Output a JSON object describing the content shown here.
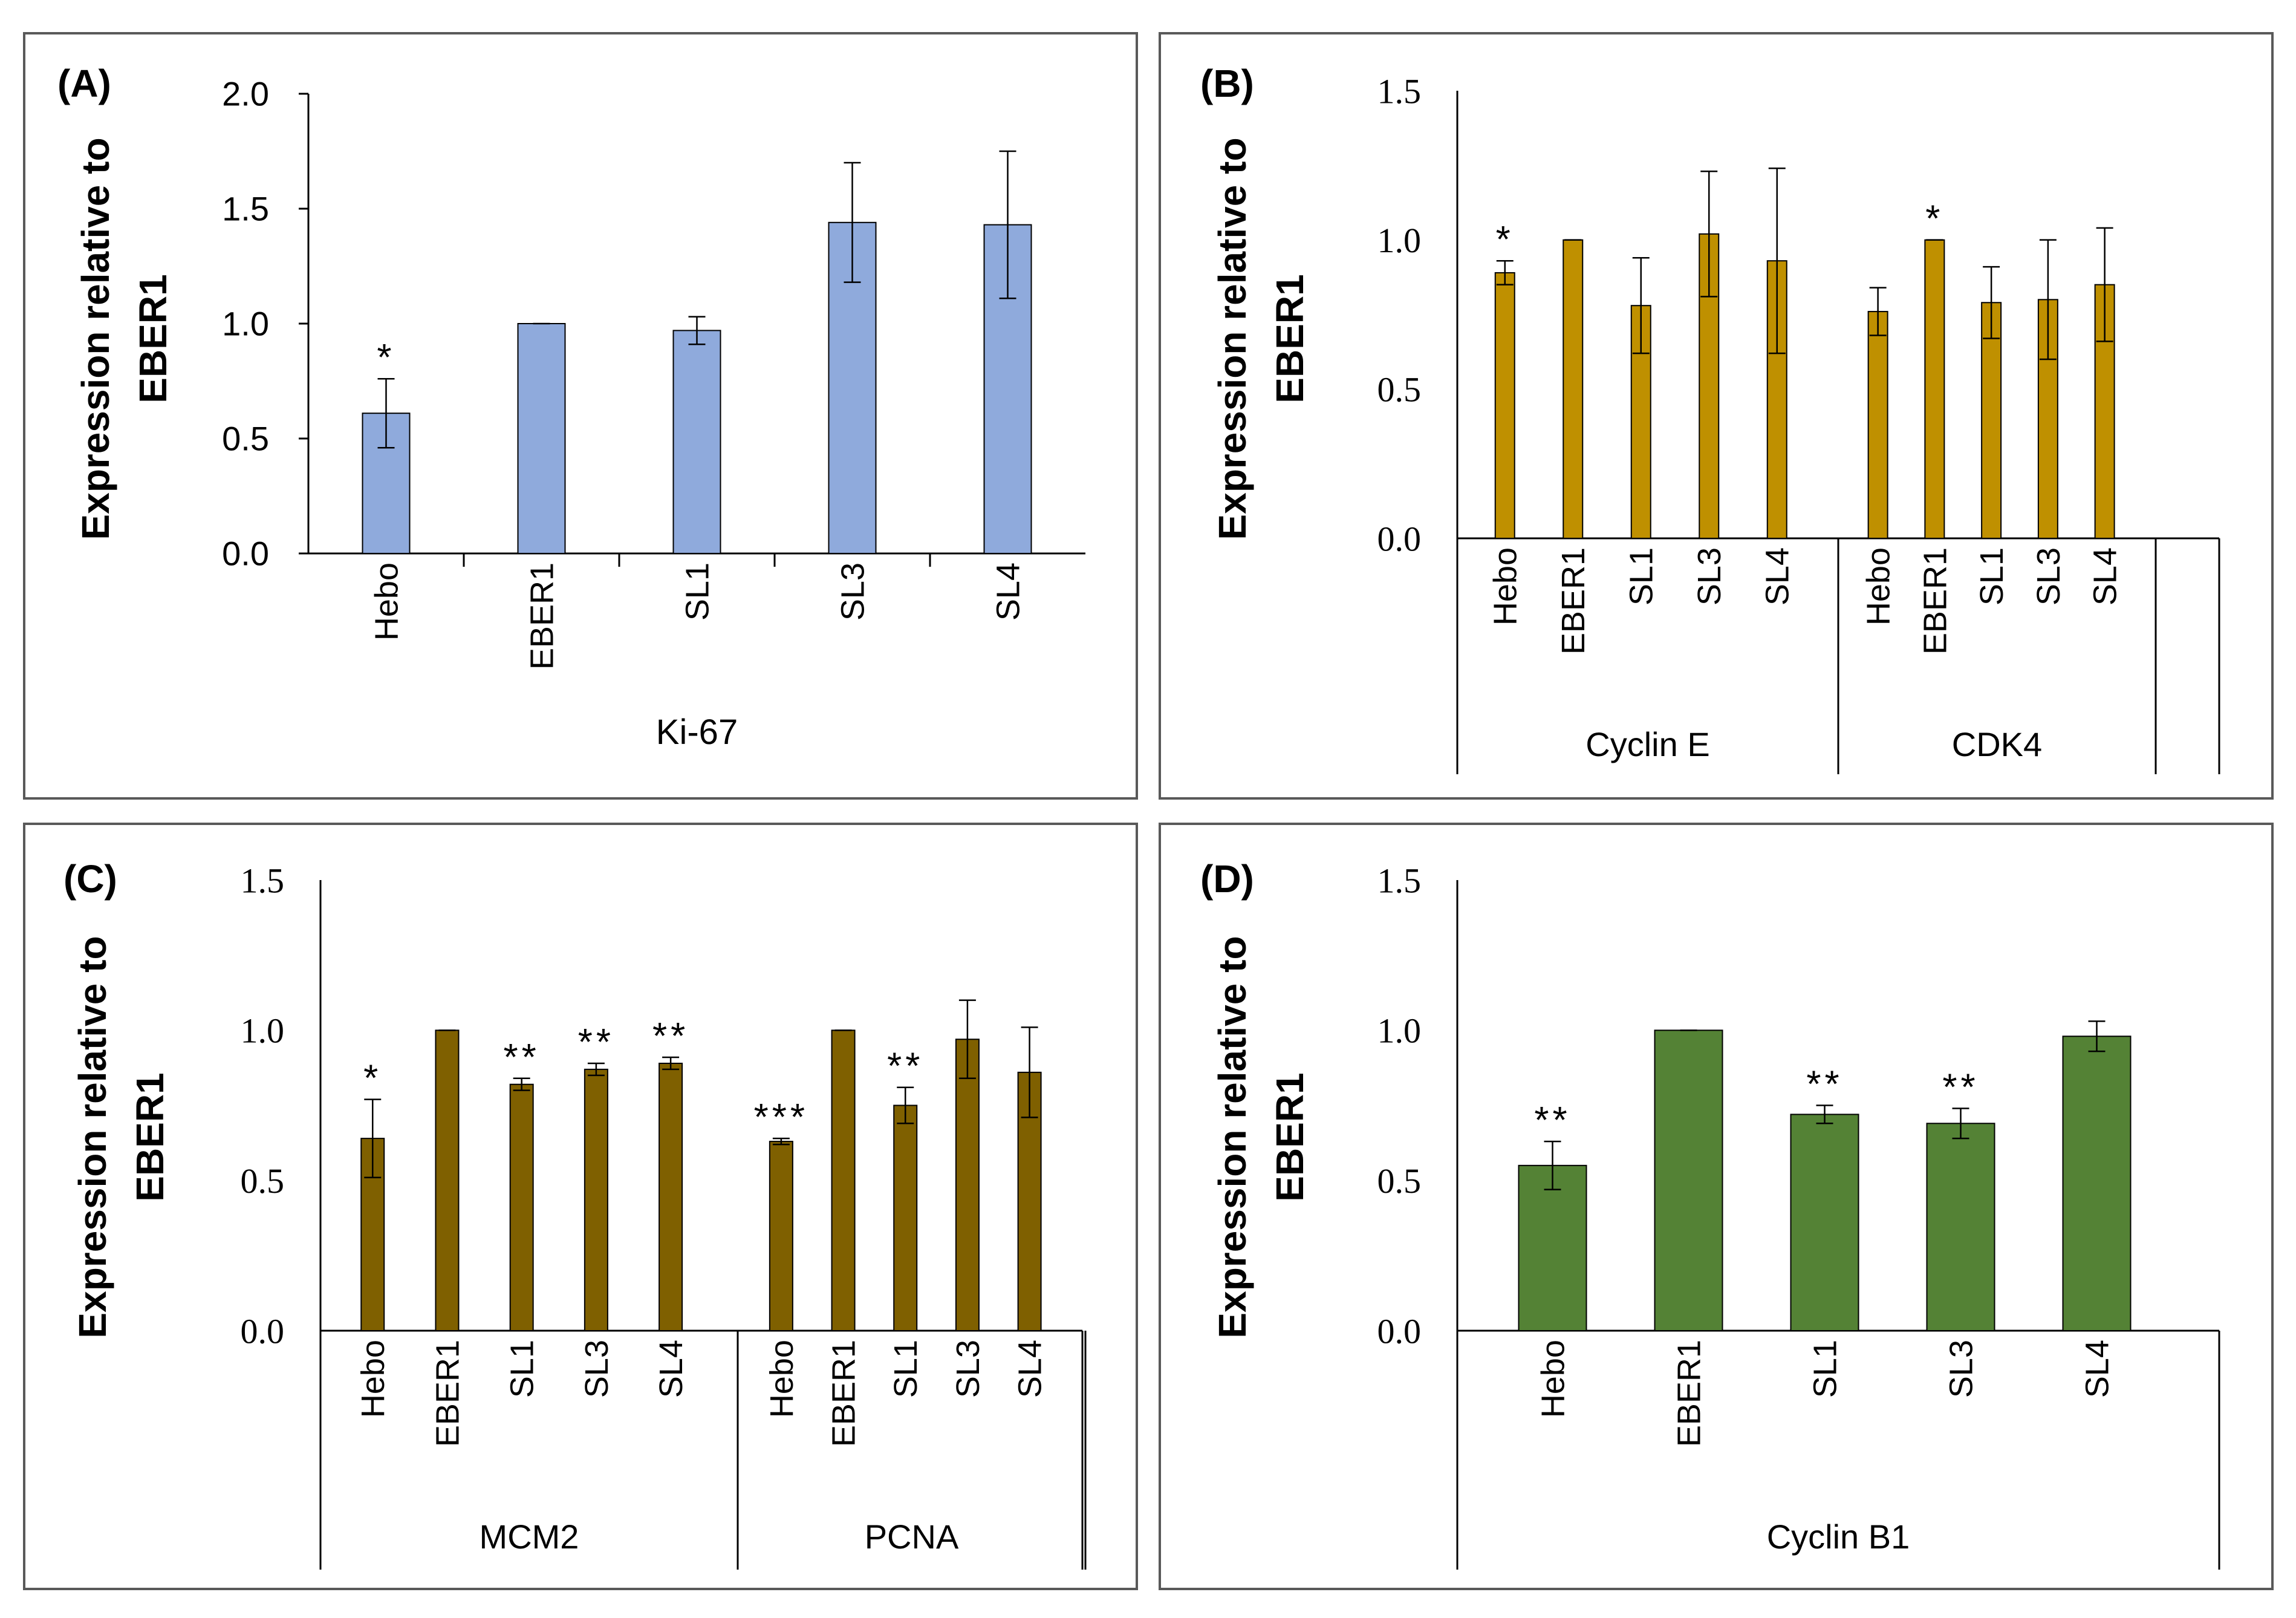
{
  "chart_data": [
    {
      "id": "A",
      "type": "bar",
      "panel_label": "(A)",
      "ylabel_line1": "Expression relative to",
      "ylabel_line2": "EBER1",
      "ylim": [
        0,
        2.0
      ],
      "yticks": [
        "0.0",
        "0.5",
        "1.0",
        "1.5",
        "2.0"
      ],
      "bar_color": "#8faadc",
      "groups": [
        {
          "label": "Ki-67",
          "categories": [
            "Hebo",
            "EBER1",
            "SL1",
            "SL3",
            "SL4"
          ],
          "values": [
            0.61,
            1.0,
            0.97,
            1.44,
            1.43
          ],
          "errors": [
            0.15,
            0.0,
            0.06,
            0.26,
            0.32
          ],
          "significance": [
            "*",
            "",
            "",
            "",
            ""
          ]
        }
      ]
    },
    {
      "id": "B",
      "type": "bar",
      "panel_label": "(B)",
      "ylabel_line1": "Expression relative to",
      "ylabel_line2": "EBER1",
      "ylim": [
        0,
        1.5
      ],
      "yticks": [
        "0.0",
        "0.5",
        "1.0",
        "1.5"
      ],
      "bar_color": "#bf9000",
      "groups": [
        {
          "label": "Cyclin E",
          "categories": [
            "Hebo",
            "EBER1",
            "SL1",
            "SL3",
            "SL4"
          ],
          "values": [
            0.89,
            1.0,
            0.78,
            1.02,
            0.93
          ],
          "errors": [
            0.04,
            0.0,
            0.16,
            0.21,
            0.31
          ],
          "significance": [
            "*",
            "",
            "",
            "",
            ""
          ]
        },
        {
          "label": "CDK4",
          "categories": [
            "Hebo",
            "EBER1",
            "SL1",
            "SL3",
            "SL4"
          ],
          "values": [
            0.76,
            1.0,
            0.79,
            0.8,
            0.85
          ],
          "errors": [
            0.08,
            0.0,
            0.12,
            0.2,
            0.19
          ],
          "significance": [
            "",
            "*",
            "",
            "",
            ""
          ]
        }
      ]
    },
    {
      "id": "C",
      "type": "bar",
      "panel_label": "(C)",
      "ylabel_line1": "Expression relative to",
      "ylabel_line2": "EBER1",
      "ylim": [
        0,
        1.5
      ],
      "yticks": [
        "0.0",
        "0.5",
        "1.0",
        "1.5"
      ],
      "bar_color": "#7f6000",
      "groups": [
        {
          "label": "MCM2",
          "categories": [
            "Hebo",
            "EBER1",
            "SL1",
            "SL3",
            "SL4"
          ],
          "values": [
            0.64,
            1.0,
            0.82,
            0.87,
            0.89
          ],
          "errors": [
            0.13,
            0.0,
            0.02,
            0.02,
            0.02
          ],
          "significance": [
            "*",
            "",
            "**",
            "**",
            "**"
          ]
        },
        {
          "label": "PCNA",
          "categories": [
            "Hebo",
            "EBER1",
            "SL1",
            "SL3",
            "SL4"
          ],
          "values": [
            0.63,
            1.0,
            0.75,
            0.97,
            0.86
          ],
          "errors": [
            0.01,
            0.0,
            0.06,
            0.13,
            0.15
          ],
          "significance": [
            "***",
            "",
            "**",
            "",
            ""
          ]
        }
      ]
    },
    {
      "id": "D",
      "type": "bar",
      "panel_label": "(D)",
      "ylabel_line1": "Expression relative to",
      "ylabel_line2": "EBER1",
      "ylim": [
        0,
        1.5
      ],
      "yticks": [
        "0.0",
        "0.5",
        "1.0",
        "1.5"
      ],
      "bar_color": "#548235",
      "groups": [
        {
          "label": "Cyclin B1",
          "categories": [
            "Hebo",
            "EBER1",
            "SL1",
            "SL3",
            "SL4"
          ],
          "values": [
            0.55,
            1.0,
            0.72,
            0.69,
            0.98
          ],
          "errors": [
            0.08,
            0.0,
            0.03,
            0.05,
            0.05
          ],
          "significance": [
            "**",
            "",
            "**",
            "**",
            ""
          ]
        }
      ]
    }
  ]
}
